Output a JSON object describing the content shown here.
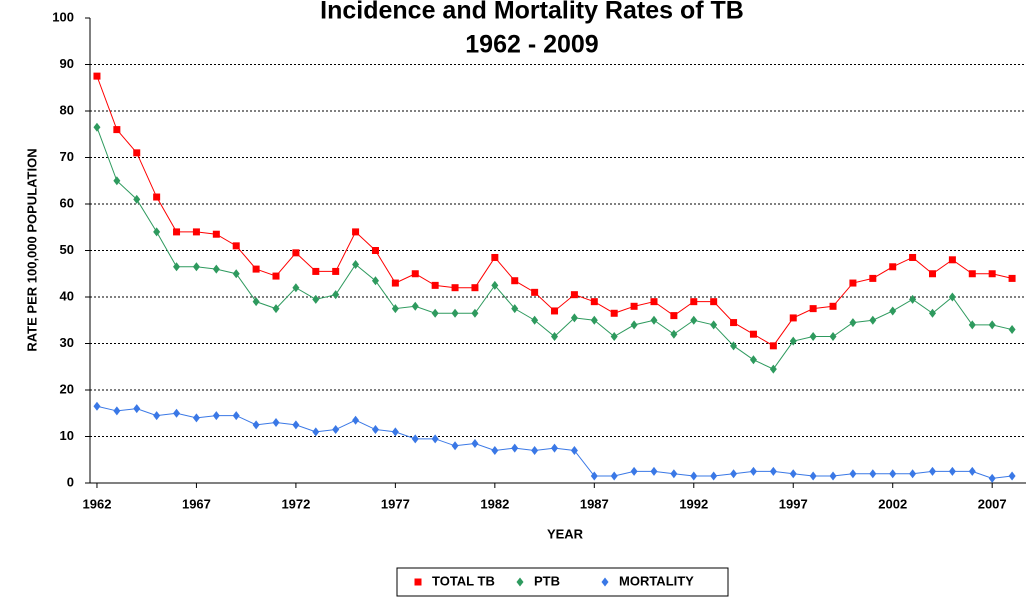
{
  "chart_data": {
    "type": "line",
    "title": "Incidence and Mortality Rates of TB",
    "subtitle": "1962 - 2009",
    "x_label": "YEAR",
    "y_label": "RATE PER 100,000 POPULATION",
    "x": [
      1962,
      1963,
      1964,
      1965,
      1966,
      1967,
      1968,
      1969,
      1970,
      1971,
      1972,
      1973,
      1974,
      1975,
      1976,
      1977,
      1978,
      1979,
      1980,
      1981,
      1982,
      1983,
      1984,
      1985,
      1986,
      1987,
      1988,
      1989,
      1990,
      1991,
      1992,
      1993,
      1994,
      1995,
      1996,
      1997,
      1998,
      1999,
      2000,
      2001,
      2002,
      2003,
      2004,
      2005,
      2006,
      2007,
      2008
    ],
    "series": [
      {
        "name": "TOTAL TB",
        "color": "#ff0000",
        "marker": "square",
        "values": [
          87.5,
          76,
          71,
          61.5,
          54,
          54,
          53.5,
          51,
          46,
          44.5,
          49.5,
          45.5,
          45.5,
          54,
          50,
          43,
          45,
          42.5,
          42,
          42,
          48.5,
          43.5,
          41,
          37,
          40.5,
          39,
          36.5,
          38,
          39,
          36,
          39,
          39,
          34.5,
          32,
          29.5,
          35.5,
          37.5,
          38,
          43,
          44,
          46.5,
          48.5,
          45,
          48,
          45,
          45,
          44
        ]
      },
      {
        "name": "PTB",
        "color": "#2e9a5e",
        "marker": "diamond",
        "values": [
          76.5,
          65,
          61,
          54,
          46.5,
          46.5,
          46,
          45,
          39,
          37.5,
          42,
          39.5,
          40.5,
          47,
          43.5,
          37.5,
          38,
          36.5,
          36.5,
          36.5,
          42.5,
          37.5,
          35,
          31.5,
          35.5,
          35,
          31.5,
          34,
          35,
          32,
          35,
          34,
          29.5,
          26.5,
          24.5,
          30.5,
          31.5,
          31.5,
          34.5,
          35,
          37,
          39.5,
          36.5,
          40,
          34,
          34,
          33
        ]
      },
      {
        "name": "MORTALITY",
        "color": "#3a78e6",
        "marker": "diamond",
        "values": [
          16.5,
          15.5,
          16,
          14.5,
          15,
          14,
          14.5,
          14.5,
          12.5,
          13,
          12.5,
          11,
          11.5,
          13.5,
          11.5,
          11,
          9.5,
          9.5,
          8,
          8.5,
          7,
          7.5,
          7,
          7.5,
          7,
          1.5,
          1.5,
          2.5,
          2.5,
          2,
          1.5,
          1.5,
          2,
          2.5,
          2.5,
          2,
          1.5,
          1.5,
          2,
          2,
          2,
          2,
          2.5,
          2.5,
          2.5,
          1,
          1.5
        ]
      }
    ],
    "xlim": [
      1961.65,
      2008.7
    ],
    "xticks": [
      1962,
      1967,
      1972,
      1977,
      1982,
      1987,
      1992,
      1997,
      2002,
      2007
    ],
    "ylim": [
      0,
      100
    ],
    "yticks": [
      0,
      10,
      20,
      30,
      40,
      50,
      60,
      70,
      80,
      90,
      100
    ],
    "grid": true,
    "legend": "bottom"
  }
}
